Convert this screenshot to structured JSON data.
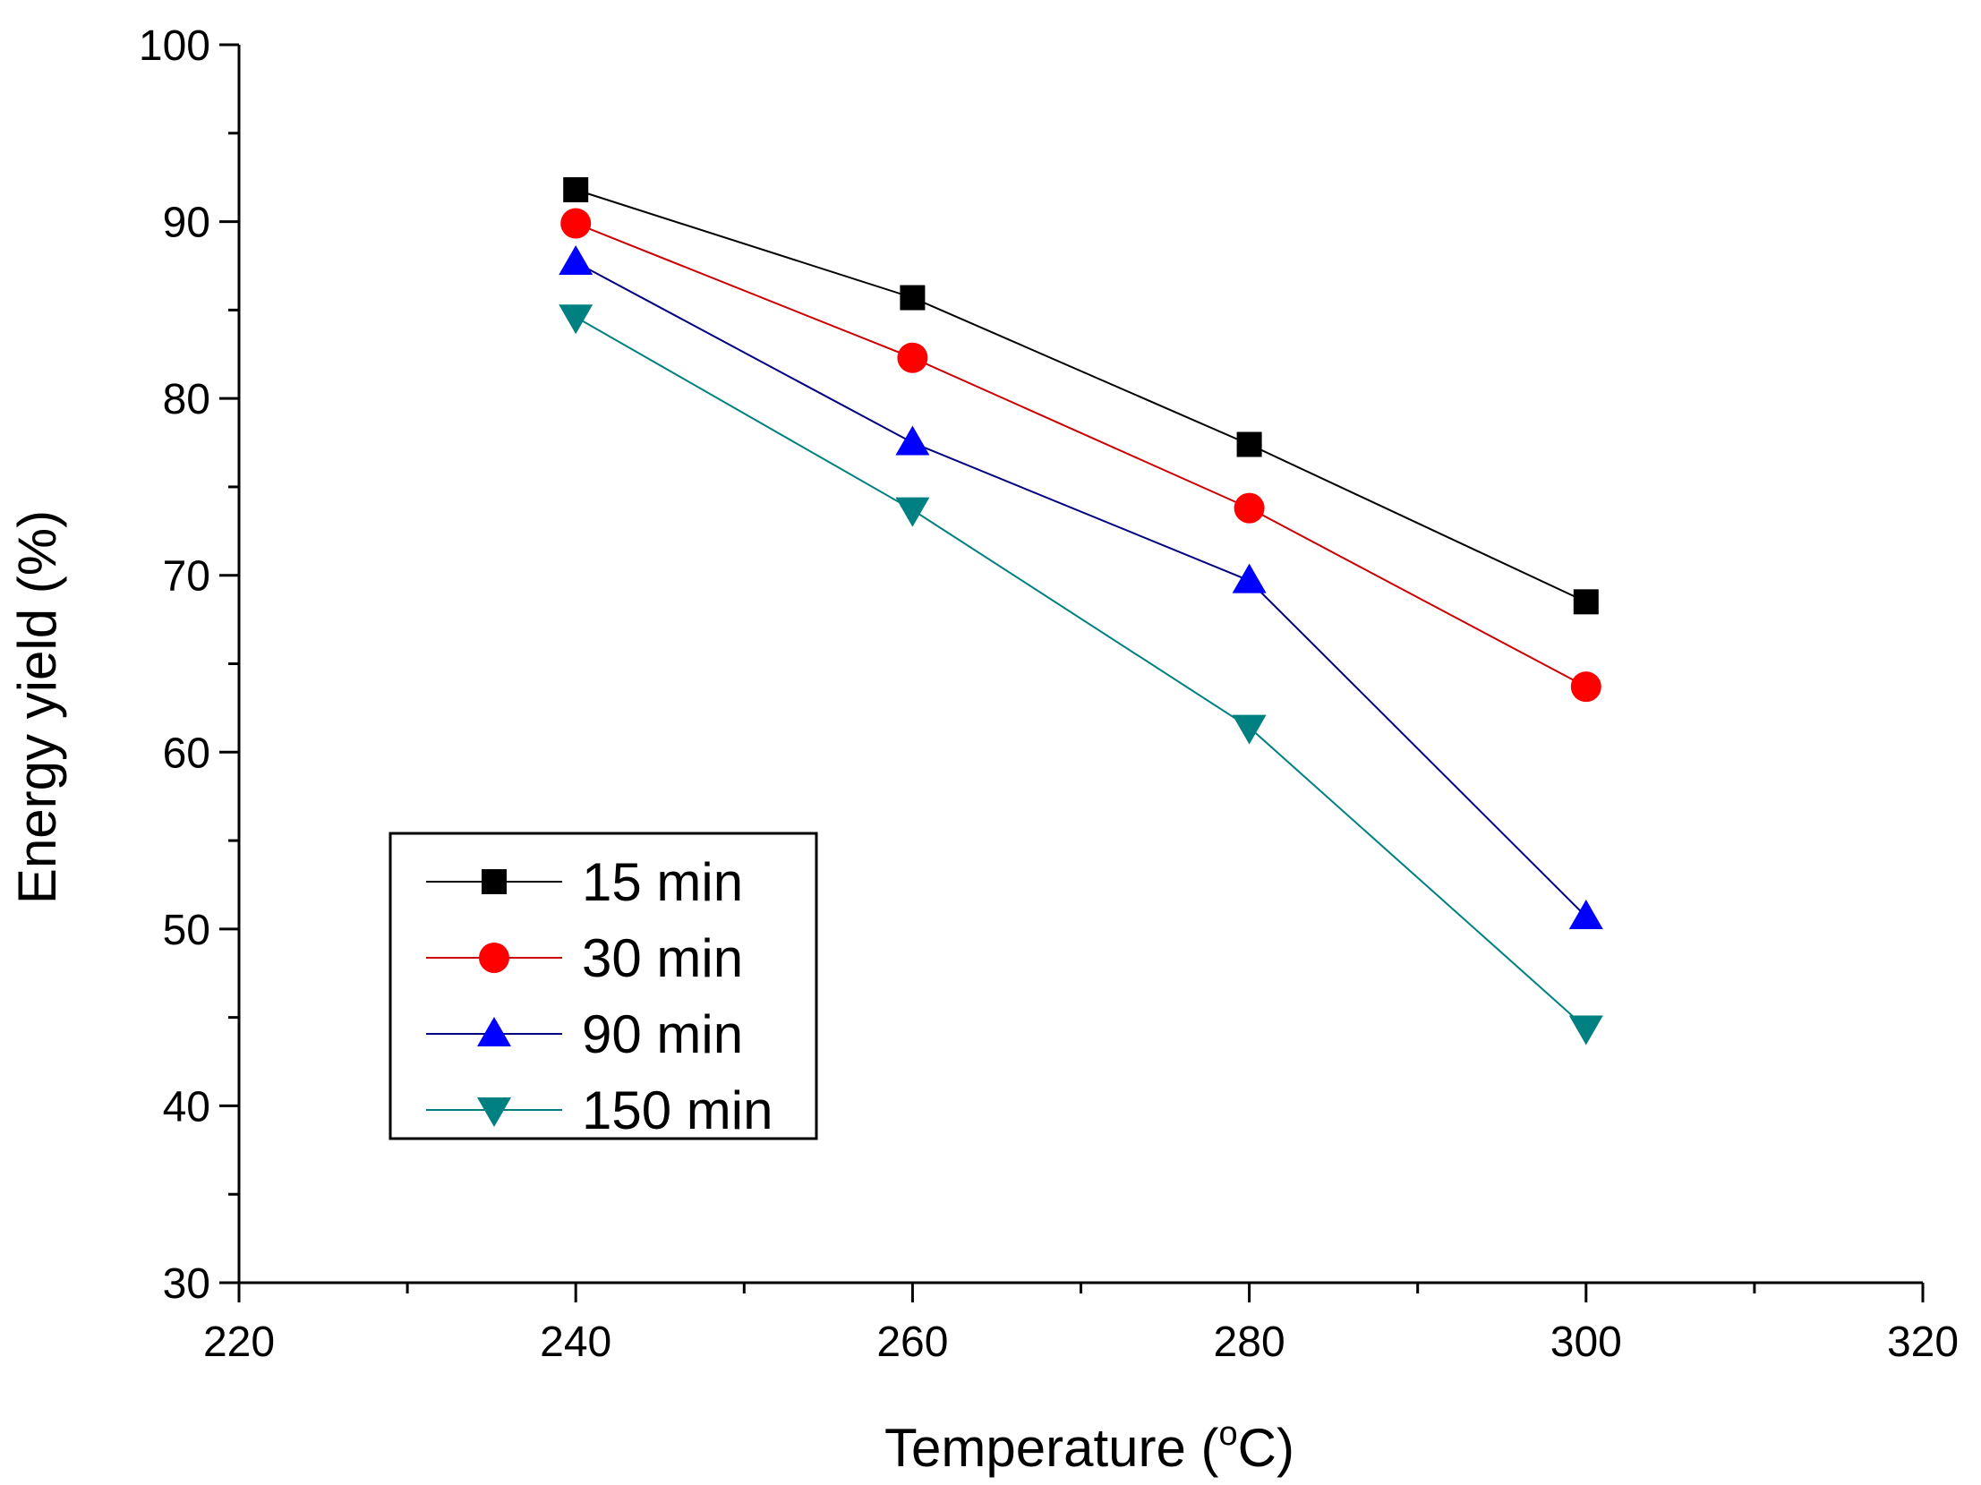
{
  "chart_data": {
    "type": "line",
    "title": "",
    "xlabel": "Temperature (",
    "xlabel_sup": "o",
    "xlabel_suffix": "C)",
    "ylabel": "Energy yield (%)",
    "xlim": [
      220,
      320
    ],
    "ylim": [
      30,
      100
    ],
    "xticks": [
      220,
      240,
      260,
      280,
      300,
      320
    ],
    "yticks": [
      30,
      40,
      50,
      60,
      70,
      80,
      90,
      100
    ],
    "x": [
      240,
      260,
      280,
      300
    ],
    "legend_position": "bottom-left",
    "series": [
      {
        "name": "15 min",
        "marker": "square",
        "color": "#000000",
        "line_color": "#000000",
        "values": [
          91.8,
          85.7,
          77.4,
          68.5
        ]
      },
      {
        "name": "30 min",
        "marker": "circle",
        "color": "#ff0000",
        "line_color": "#cc0000",
        "values": [
          89.9,
          82.3,
          73.8,
          63.7
        ]
      },
      {
        "name": "90 min",
        "marker": "triangle-up",
        "color": "#0000ff",
        "line_color": "#000080",
        "values": [
          87.7,
          77.5,
          69.7,
          50.7
        ]
      },
      {
        "name": "150 min",
        "marker": "triangle-down",
        "color": "#008080",
        "line_color": "#008080",
        "values": [
          84.6,
          73.7,
          61.4,
          44.4
        ]
      }
    ]
  }
}
